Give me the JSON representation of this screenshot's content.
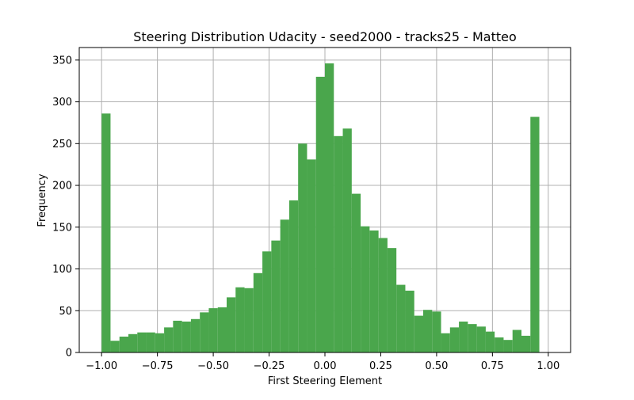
{
  "chart_data": {
    "type": "bar",
    "title": "Steering Distribution Udacity - seed2000 - tracks25 - Matteo",
    "xlabel": "First Steering Element",
    "ylabel": "Frequency",
    "xlim": [
      -1.1,
      1.1
    ],
    "ylim": [
      0,
      365
    ],
    "grid": true,
    "bar_color": "#4aa64c",
    "bin_width": 0.04,
    "x_ticks": [
      {
        "value": -1.0,
        "label": "−1.00"
      },
      {
        "value": -0.75,
        "label": "−0.75"
      },
      {
        "value": -0.5,
        "label": "−0.50"
      },
      {
        "value": -0.25,
        "label": "−0.25"
      },
      {
        "value": 0.0,
        "label": "0.00"
      },
      {
        "value": 0.25,
        "label": "0.25"
      },
      {
        "value": 0.5,
        "label": "0.50"
      },
      {
        "value": 0.75,
        "label": "0.75"
      },
      {
        "value": 1.0,
        "label": "1.00"
      }
    ],
    "y_ticks": [
      {
        "value": 0,
        "label": "0"
      },
      {
        "value": 50,
        "label": "50"
      },
      {
        "value": 100,
        "label": "100"
      },
      {
        "value": 150,
        "label": "150"
      },
      {
        "value": 200,
        "label": "200"
      },
      {
        "value": 250,
        "label": "250"
      },
      {
        "value": 300,
        "label": "300"
      },
      {
        "value": 350,
        "label": "350"
      }
    ],
    "bin_starts": [
      -1.0,
      -0.96,
      -0.92,
      -0.88,
      -0.84,
      -0.8,
      -0.76,
      -0.72,
      -0.68,
      -0.64,
      -0.6,
      -0.56,
      -0.52,
      -0.48,
      -0.44,
      -0.4,
      -0.36,
      -0.32,
      -0.28,
      -0.24,
      -0.2,
      -0.16,
      -0.12,
      -0.08,
      -0.04,
      0.0,
      0.04,
      0.08,
      0.12,
      0.16,
      0.2,
      0.24,
      0.28,
      0.32,
      0.36,
      0.4,
      0.44,
      0.48,
      0.52,
      0.56,
      0.6,
      0.64,
      0.68,
      0.72,
      0.76,
      0.8,
      0.84,
      0.88,
      0.92,
      0.96
    ],
    "values": [
      286,
      14,
      19,
      22,
      24,
      24,
      23,
      30,
      38,
      37,
      40,
      48,
      53,
      54,
      66,
      78,
      77,
      95,
      121,
      134,
      159,
      182,
      250,
      231,
      330,
      346,
      259,
      268,
      190,
      151,
      146,
      137,
      125,
      81,
      74,
      44,
      51,
      49,
      23,
      30,
      37,
      34,
      31,
      25,
      18,
      15,
      27,
      20,
      282,
      0
    ]
  }
}
